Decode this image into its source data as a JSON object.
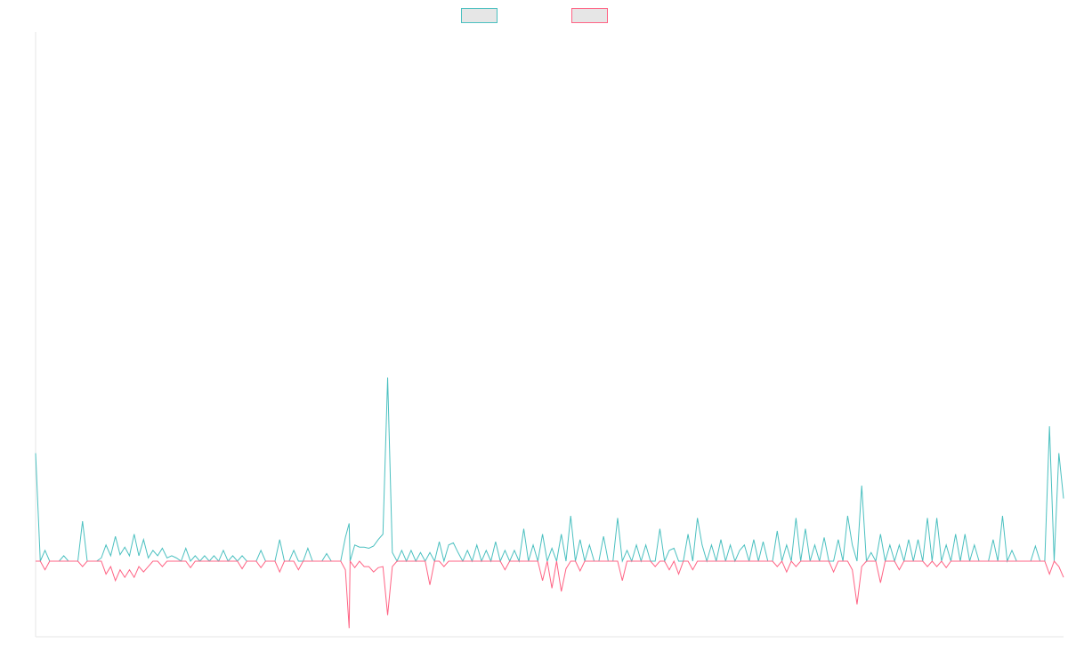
{
  "chart_data": {
    "type": "line",
    "title": "",
    "xlabel": "",
    "ylabel": "",
    "grid": false,
    "legend_position": "top-center",
    "x_count": 220,
    "ylim": [
      -0.7,
      4.9
    ],
    "baseline": 0,
    "series": [
      {
        "label": "",
        "color": "#4bc0c0",
        "fill": "#e6e6e6",
        "points": [
          [
            0,
            1.0
          ],
          [
            2,
            0.1
          ],
          [
            6,
            0.05
          ],
          [
            10,
            0.37
          ],
          [
            14,
            0.03
          ],
          [
            15,
            0.15
          ],
          [
            16,
            0.05
          ],
          [
            17,
            0.23
          ],
          [
            18,
            0.06
          ],
          [
            19,
            0.13
          ],
          [
            20,
            0.05
          ],
          [
            21,
            0.25
          ],
          [
            22,
            0.05
          ],
          [
            23,
            0.2
          ],
          [
            24,
            0.03
          ],
          [
            25,
            0.1
          ],
          [
            26,
            0.05
          ],
          [
            27,
            0.12
          ],
          [
            28,
            0.03
          ],
          [
            29,
            0.05
          ],
          [
            30,
            0.03
          ],
          [
            32,
            0.12
          ],
          [
            34,
            0.05
          ],
          [
            36,
            0.05
          ],
          [
            38,
            0.05
          ],
          [
            40,
            0.1
          ],
          [
            42,
            0.05
          ],
          [
            44,
            0.05
          ],
          [
            48,
            0.1
          ],
          [
            52,
            0.2
          ],
          [
            55,
            0.1
          ],
          [
            58,
            0.12
          ],
          [
            62,
            0.07
          ],
          [
            66,
            0.22
          ],
          [
            66.8,
            0.35
          ],
          [
            68,
            0.15
          ],
          [
            69,
            0.13
          ],
          [
            70,
            0.13
          ],
          [
            71,
            0.12
          ],
          [
            72,
            0.14
          ],
          [
            73,
            0.2
          ],
          [
            74,
            0.25
          ],
          [
            75,
            1.7
          ],
          [
            76,
            0.08
          ],
          [
            78,
            0.1
          ],
          [
            80,
            0.1
          ],
          [
            82,
            0.08
          ],
          [
            84,
            0.08
          ],
          [
            86,
            0.18
          ],
          [
            88,
            0.15
          ],
          [
            89,
            0.17
          ],
          [
            90,
            0.08
          ],
          [
            92,
            0.1
          ],
          [
            94,
            0.15
          ],
          [
            96,
            0.1
          ],
          [
            98,
            0.18
          ],
          [
            100,
            0.1
          ],
          [
            102,
            0.1
          ],
          [
            104,
            0.3
          ],
          [
            106,
            0.15
          ],
          [
            108,
            0.25
          ],
          [
            110,
            0.12
          ],
          [
            112,
            0.25
          ],
          [
            114,
            0.42
          ],
          [
            116,
            0.2
          ],
          [
            118,
            0.15
          ],
          [
            121,
            0.23
          ],
          [
            124,
            0.4
          ],
          [
            126,
            0.1
          ],
          [
            128,
            0.15
          ],
          [
            130,
            0.15
          ],
          [
            133,
            0.3
          ],
          [
            135,
            0.1
          ],
          [
            136,
            0.12
          ],
          [
            139,
            0.25
          ],
          [
            141,
            0.4
          ],
          [
            142,
            0.15
          ],
          [
            144,
            0.15
          ],
          [
            146,
            0.2
          ],
          [
            148,
            0.15
          ],
          [
            150,
            0.1
          ],
          [
            151,
            0.15
          ],
          [
            153,
            0.2
          ],
          [
            155,
            0.18
          ],
          [
            158,
            0.28
          ],
          [
            160,
            0.15
          ],
          [
            162,
            0.4
          ],
          [
            164,
            0.3
          ],
          [
            166,
            0.15
          ],
          [
            168,
            0.22
          ],
          [
            171,
            0.2
          ],
          [
            173,
            0.42
          ],
          [
            174,
            0.15
          ],
          [
            176,
            0.7
          ],
          [
            178,
            0.08
          ],
          [
            180,
            0.25
          ],
          [
            182,
            0.15
          ],
          [
            184,
            0.15
          ],
          [
            186,
            0.2
          ],
          [
            188,
            0.2
          ],
          [
            190,
            0.4
          ],
          [
            192,
            0.4
          ],
          [
            194,
            0.15
          ],
          [
            196,
            0.25
          ],
          [
            198,
            0.25
          ],
          [
            200,
            0.15
          ],
          [
            204,
            0.2
          ],
          [
            206,
            0.42
          ],
          [
            208,
            0.1
          ],
          [
            213,
            0.14
          ],
          [
            216,
            1.25
          ],
          [
            218,
            1.0
          ],
          [
            219,
            0.58
          ]
        ]
      },
      {
        "label": "",
        "color": "#ff6384",
        "fill": "#e6e6e6",
        "points": [
          [
            2,
            -0.08
          ],
          [
            10,
            -0.05
          ],
          [
            15,
            -0.12
          ],
          [
            16,
            -0.05
          ],
          [
            17,
            -0.18
          ],
          [
            18,
            -0.08
          ],
          [
            19,
            -0.15
          ],
          [
            20,
            -0.08
          ],
          [
            21,
            -0.15
          ],
          [
            22,
            -0.05
          ],
          [
            23,
            -0.1
          ],
          [
            24,
            -0.05
          ],
          [
            27,
            -0.05
          ],
          [
            33,
            -0.06
          ],
          [
            44,
            -0.07
          ],
          [
            48,
            -0.06
          ],
          [
            52,
            -0.1
          ],
          [
            56,
            -0.08
          ],
          [
            66,
            -0.08
          ],
          [
            66.8,
            -0.62
          ],
          [
            68,
            -0.06
          ],
          [
            70,
            -0.05
          ],
          [
            71,
            -0.05
          ],
          [
            72,
            -0.1
          ],
          [
            73,
            -0.06
          ],
          [
            74,
            -0.05
          ],
          [
            75,
            -0.5
          ],
          [
            76,
            -0.05
          ],
          [
            84,
            -0.22
          ],
          [
            87,
            -0.05
          ],
          [
            100,
            -0.08
          ],
          [
            108,
            -0.18
          ],
          [
            110,
            -0.25
          ],
          [
            112,
            -0.28
          ],
          [
            113,
            -0.07
          ],
          [
            116,
            -0.09
          ],
          [
            125,
            -0.18
          ],
          [
            132,
            -0.05
          ],
          [
            135,
            -0.08
          ],
          [
            137,
            -0.12
          ],
          [
            140,
            -0.08
          ],
          [
            158,
            -0.05
          ],
          [
            160,
            -0.1
          ],
          [
            162,
            -0.05
          ],
          [
            170,
            -0.1
          ],
          [
            174,
            -0.08
          ],
          [
            175,
            -0.4
          ],
          [
            176,
            -0.05
          ],
          [
            180,
            -0.2
          ],
          [
            184,
            -0.08
          ],
          [
            190,
            -0.05
          ],
          [
            192,
            -0.05
          ],
          [
            194,
            -0.06
          ],
          [
            216,
            -0.12
          ],
          [
            218,
            -0.05
          ],
          [
            219,
            -0.15
          ]
        ]
      }
    ]
  }
}
